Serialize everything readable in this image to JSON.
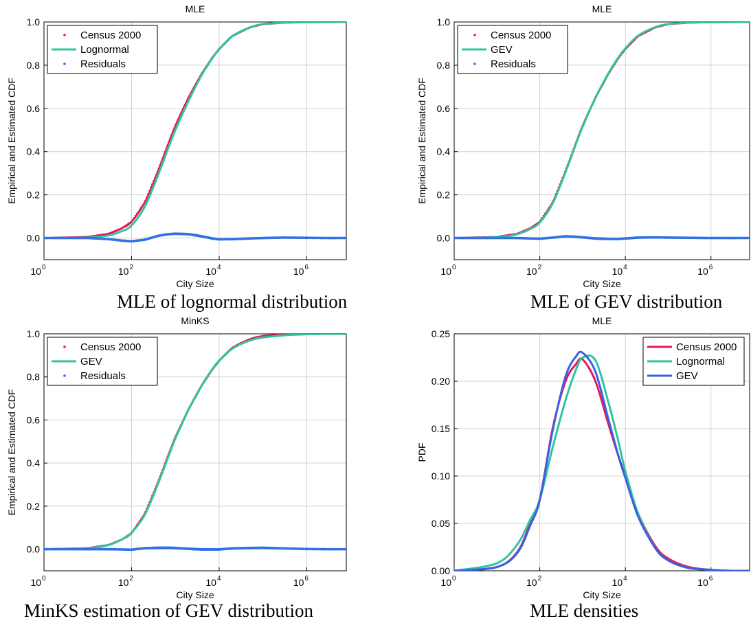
{
  "colors": {
    "census": "#e8175d",
    "lognormal": "#2ec4a0",
    "gev": "#3b5fe0",
    "residuals": "#2f72e6",
    "grid": "#d0d0d0",
    "frame": "#000000"
  },
  "chart_data": [
    {
      "type": "line",
      "title": "MLE",
      "caption": "MLE of lognormal distribution",
      "xlabel": "City Size",
      "ylabel": "Empirical and Estimated CDF",
      "xscale": "log",
      "xlim": [
        1,
        8000000
      ],
      "ylim": [
        -0.1,
        1.0
      ],
      "x_ticks": [
        1,
        100,
        10000,
        1000000
      ],
      "x_tick_labels": [
        [
          "10",
          "0"
        ],
        [
          "10",
          "2"
        ],
        [
          "10",
          "4"
        ],
        [
          "10",
          "6"
        ]
      ],
      "y_ticks": [
        0.0,
        0.2,
        0.4,
        0.6,
        0.8,
        1.0
      ],
      "y_tick_labels": [
        "0.0",
        "0.2",
        "0.4",
        "0.6",
        "0.8",
        "1.0"
      ],
      "grid": true,
      "legend": "top-left",
      "series": [
        {
          "name": "Census 2000",
          "style": "points",
          "color": "census",
          "x": [
            1,
            10,
            30,
            60,
            100,
            200,
            400,
            700,
            1000,
            2000,
            4000,
            7000,
            10000,
            20000,
            50000,
            100000,
            300000,
            1000000,
            3000000,
            8000000
          ],
          "y": [
            0.0,
            0.005,
            0.02,
            0.045,
            0.075,
            0.165,
            0.31,
            0.44,
            0.52,
            0.65,
            0.76,
            0.835,
            0.875,
            0.935,
            0.975,
            0.99,
            0.997,
            0.999,
            1.0,
            1.0
          ]
        },
        {
          "name": "Lognormal",
          "style": "line",
          "color": "lognormal",
          "x": [
            1,
            10,
            30,
            60,
            100,
            200,
            400,
            700,
            1000,
            2000,
            4000,
            7000,
            10000,
            20000,
            50000,
            100000,
            300000,
            1000000,
            3000000,
            8000000
          ],
          "y": [
            0.0,
            0.002,
            0.012,
            0.032,
            0.058,
            0.145,
            0.29,
            0.42,
            0.5,
            0.635,
            0.755,
            0.832,
            0.873,
            0.934,
            0.974,
            0.99,
            0.997,
            0.999,
            1.0,
            1.0
          ]
        },
        {
          "name": "Residuals",
          "style": "points",
          "color": "residuals",
          "x": [
            1,
            10,
            30,
            60,
            100,
            200,
            400,
            700,
            1000,
            2000,
            4000,
            7000,
            10000,
            20000,
            50000,
            100000,
            300000,
            1000000,
            3000000,
            8000000
          ],
          "y": [
            0.0,
            0.0,
            -0.005,
            -0.012,
            -0.015,
            -0.008,
            0.01,
            0.018,
            0.02,
            0.018,
            0.008,
            -0.002,
            -0.006,
            -0.005,
            -0.002,
            0.0,
            0.002,
            0.001,
            0.0,
            0.0
          ]
        }
      ]
    },
    {
      "type": "line",
      "title": "MLE",
      "caption": "MLE of GEV distribution",
      "xlabel": "City Size",
      "ylabel": "Empirical and Estimated CDF",
      "xscale": "log",
      "xlim": [
        1,
        8000000
      ],
      "ylim": [
        -0.1,
        1.0
      ],
      "x_ticks": [
        1,
        100,
        10000,
        1000000
      ],
      "x_tick_labels": [
        [
          "10",
          "0"
        ],
        [
          "10",
          "2"
        ],
        [
          "10",
          "4"
        ],
        [
          "10",
          "6"
        ]
      ],
      "y_ticks": [
        0.0,
        0.2,
        0.4,
        0.6,
        0.8,
        1.0
      ],
      "y_tick_labels": [
        "0.0",
        "0.2",
        "0.4",
        "0.6",
        "0.8",
        "1.0"
      ],
      "grid": true,
      "legend": "top-left",
      "series": [
        {
          "name": "Census 2000",
          "style": "points",
          "color": "census",
          "x": [
            1,
            10,
            30,
            60,
            100,
            200,
            400,
            700,
            1000,
            2000,
            4000,
            7000,
            10000,
            20000,
            50000,
            100000,
            300000,
            1000000,
            3000000,
            8000000
          ],
          "y": [
            0.0,
            0.005,
            0.02,
            0.045,
            0.075,
            0.165,
            0.31,
            0.44,
            0.52,
            0.65,
            0.76,
            0.835,
            0.875,
            0.935,
            0.975,
            0.99,
            0.997,
            0.999,
            1.0,
            1.0
          ]
        },
        {
          "name": "GEV",
          "style": "line",
          "color": "lognormal",
          "x": [
            1,
            10,
            30,
            60,
            100,
            200,
            400,
            700,
            1000,
            2000,
            4000,
            7000,
            10000,
            20000,
            50000,
            100000,
            300000,
            1000000,
            3000000,
            8000000
          ],
          "y": [
            0.0,
            0.004,
            0.018,
            0.042,
            0.072,
            0.16,
            0.305,
            0.435,
            0.515,
            0.648,
            0.762,
            0.838,
            0.878,
            0.937,
            0.976,
            0.99,
            0.997,
            0.999,
            1.0,
            1.0
          ]
        },
        {
          "name": "Residuals",
          "style": "points",
          "color": "residuals",
          "x": [
            1,
            10,
            30,
            60,
            100,
            200,
            400,
            700,
            1000,
            2000,
            4000,
            7000,
            10000,
            20000,
            50000,
            100000,
            300000,
            1000000,
            3000000,
            8000000
          ],
          "y": [
            0.0,
            0.0,
            0.0,
            -0.002,
            -0.003,
            0.002,
            0.008,
            0.006,
            0.003,
            -0.002,
            -0.004,
            -0.004,
            -0.002,
            0.002,
            0.003,
            0.002,
            0.001,
            0.0,
            0.0,
            0.0
          ]
        }
      ]
    },
    {
      "type": "line",
      "title": "MinKS",
      "caption": "MinKS estimation of GEV distribution",
      "xlabel": "City Size",
      "ylabel": "Empirical and Estimated CDF",
      "xscale": "log",
      "xlim": [
        1,
        8000000
      ],
      "ylim": [
        -0.1,
        1.0
      ],
      "x_ticks": [
        1,
        100,
        10000,
        1000000
      ],
      "x_tick_labels": [
        [
          "10",
          "0"
        ],
        [
          "10",
          "2"
        ],
        [
          "10",
          "4"
        ],
        [
          "10",
          "6"
        ]
      ],
      "y_ticks": [
        0.0,
        0.2,
        0.4,
        0.6,
        0.8,
        1.0
      ],
      "y_tick_labels": [
        "0.0",
        "0.2",
        "0.4",
        "0.6",
        "0.8",
        "1.0"
      ],
      "grid": true,
      "legend": "top-left",
      "series": [
        {
          "name": "Census 2000",
          "style": "points",
          "color": "census",
          "x": [
            1,
            10,
            30,
            60,
            100,
            200,
            400,
            700,
            1000,
            2000,
            4000,
            7000,
            10000,
            20000,
            50000,
            100000,
            300000,
            1000000,
            3000000,
            8000000
          ],
          "y": [
            0.0,
            0.005,
            0.02,
            0.045,
            0.075,
            0.165,
            0.31,
            0.44,
            0.52,
            0.65,
            0.76,
            0.835,
            0.875,
            0.935,
            0.975,
            0.99,
            0.997,
            0.999,
            1.0,
            1.0
          ]
        },
        {
          "name": "GEV",
          "style": "line",
          "color": "lognormal",
          "x": [
            1,
            10,
            30,
            60,
            100,
            200,
            400,
            700,
            1000,
            2000,
            4000,
            7000,
            10000,
            20000,
            50000,
            100000,
            300000,
            1000000,
            3000000,
            8000000
          ],
          "y": [
            0.0,
            0.005,
            0.02,
            0.046,
            0.077,
            0.16,
            0.303,
            0.433,
            0.514,
            0.648,
            0.761,
            0.836,
            0.876,
            0.931,
            0.969,
            0.983,
            0.993,
            0.998,
            1.0,
            1.0
          ]
        },
        {
          "name": "Residuals",
          "style": "points",
          "color": "residuals",
          "x": [
            1,
            10,
            30,
            60,
            100,
            200,
            400,
            700,
            1000,
            2000,
            4000,
            7000,
            10000,
            20000,
            50000,
            100000,
            300000,
            1000000,
            3000000,
            8000000
          ],
          "y": [
            0.0,
            0.0,
            0.0,
            -0.001,
            -0.002,
            0.005,
            0.007,
            0.007,
            0.006,
            0.002,
            -0.001,
            -0.001,
            -0.001,
            0.004,
            0.006,
            0.007,
            0.004,
            0.001,
            0.0,
            0.0
          ]
        }
      ]
    },
    {
      "type": "line",
      "title": "MLE",
      "caption": "MLE densities",
      "xlabel": "City Size",
      "ylabel": "PDF",
      "xscale": "log",
      "xlim": [
        1,
        8000000
      ],
      "ylim": [
        0.0,
        0.25
      ],
      "x_ticks": [
        1,
        100,
        10000,
        1000000
      ],
      "x_tick_labels": [
        [
          "10",
          "0"
        ],
        [
          "10",
          "2"
        ],
        [
          "10",
          "4"
        ],
        [
          "10",
          "6"
        ]
      ],
      "y_ticks": [
        0.0,
        0.05,
        0.1,
        0.15,
        0.2,
        0.25
      ],
      "y_tick_labels": [
        "0.00",
        "0.05",
        "0.10",
        "0.15",
        "0.20",
        "0.25"
      ],
      "grid": true,
      "legend": "top-right",
      "series": [
        {
          "name": "Census 2000",
          "style": "line",
          "color": "census",
          "x": [
            1,
            10,
            30,
            60,
            100,
            200,
            400,
            700,
            1000,
            2000,
            4000,
            7000,
            10000,
            20000,
            50000,
            100000,
            300000,
            1000000,
            3000000,
            8000000
          ],
          "y": [
            0.0,
            0.004,
            0.02,
            0.05,
            0.075,
            0.15,
            0.2,
            0.218,
            0.223,
            0.2,
            0.155,
            0.12,
            0.1,
            0.06,
            0.026,
            0.013,
            0.004,
            0.001,
            0.0,
            0.0
          ]
        },
        {
          "name": "Lognormal",
          "style": "line",
          "color": "lognormal",
          "x": [
            1,
            10,
            30,
            60,
            100,
            200,
            400,
            700,
            1000,
            2000,
            4000,
            7000,
            10000,
            20000,
            50000,
            100000,
            300000,
            1000000,
            3000000,
            8000000
          ],
          "y": [
            0.0,
            0.008,
            0.028,
            0.054,
            0.075,
            0.13,
            0.18,
            0.212,
            0.225,
            0.222,
            0.178,
            0.135,
            0.105,
            0.06,
            0.024,
            0.011,
            0.003,
            0.001,
            0.0,
            0.0
          ]
        },
        {
          "name": "GEV",
          "style": "line",
          "color": "gev",
          "x": [
            1,
            10,
            30,
            60,
            100,
            200,
            400,
            700,
            1000,
            2000,
            4000,
            7000,
            10000,
            20000,
            50000,
            100000,
            300000,
            1000000,
            3000000,
            8000000
          ],
          "y": [
            0.0,
            0.004,
            0.019,
            0.048,
            0.075,
            0.148,
            0.205,
            0.226,
            0.23,
            0.21,
            0.16,
            0.12,
            0.098,
            0.057,
            0.024,
            0.011,
            0.003,
            0.001,
            0.0,
            0.0
          ]
        }
      ]
    }
  ]
}
